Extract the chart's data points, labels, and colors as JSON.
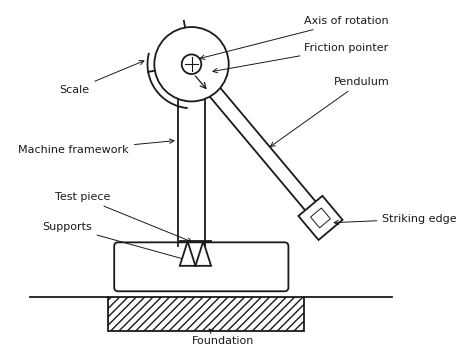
{
  "bg_color": "#ffffff",
  "line_color": "#1a1a1a",
  "labels": {
    "axis_of_rotation": "Axis of rotation",
    "friction_pointer": "Friction pointer",
    "pendulum": "Pendulum",
    "scale": "Scale",
    "machine_framework": "Machine framework",
    "test_piece": "Test piece",
    "supports": "Supports",
    "striking_edge": "Striking edge",
    "foundation": "Foundation"
  },
  "fontsize": 8.0
}
